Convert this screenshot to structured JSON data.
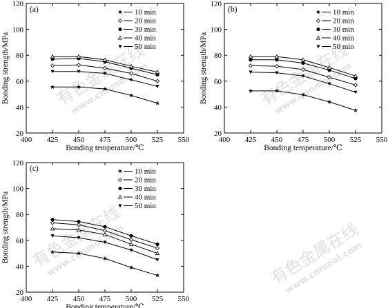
{
  "watermark": {
    "main": "有色金属在线",
    "sub": "www.cnnmol.com"
  },
  "chart_data": [
    {
      "type": "line",
      "panel_label": "(a)",
      "xlabel": "Bonding temperature/℃",
      "ylabel": "Bonding strength/MPa",
      "xlim": [
        400,
        550
      ],
      "ylim": [
        20,
        120
      ],
      "xticks": [
        400,
        425,
        450,
        475,
        500,
        525,
        550
      ],
      "yticks": [
        20,
        40,
        60,
        80,
        100,
        120
      ],
      "x": [
        425,
        450,
        475,
        500,
        525
      ],
      "legend_position": "top-right",
      "series": [
        {
          "name": "10 min",
          "marker": "star",
          "values": [
            55.5,
            55.5,
            54,
            49,
            43
          ]
        },
        {
          "name": "20 min",
          "marker": "diamond",
          "values": [
            72,
            72.5,
            70,
            66,
            60
          ]
        },
        {
          "name": "30 min",
          "marker": "circle",
          "values": [
            77,
            77.5,
            75,
            70,
            65
          ]
        },
        {
          "name": "40 min",
          "marker": "triangle-up",
          "values": [
            79,
            79,
            76.5,
            71.5,
            67
          ]
        },
        {
          "name": "50 min",
          "marker": "triangle-down",
          "values": [
            67.5,
            67.5,
            66,
            61,
            56
          ]
        }
      ]
    },
    {
      "type": "line",
      "panel_label": "(b)",
      "xlabel": "Bonding temperature/℃",
      "ylabel": "Bonding strength/MPa",
      "xlim": [
        400,
        550
      ],
      "ylim": [
        20,
        120
      ],
      "xticks": [
        400,
        425,
        450,
        475,
        500,
        525,
        550
      ],
      "yticks": [
        20,
        40,
        60,
        80,
        100,
        120
      ],
      "x": [
        425,
        450,
        475,
        500,
        525
      ],
      "legend_position": "top-right",
      "series": [
        {
          "name": "10 min",
          "marker": "star",
          "values": [
            52.5,
            52.5,
            49.5,
            44,
            37.5
          ]
        },
        {
          "name": "20 min",
          "marker": "diamond",
          "values": [
            72,
            71.5,
            69,
            63,
            57
          ]
        },
        {
          "name": "30 min",
          "marker": "circle",
          "values": [
            76.5,
            76.5,
            74,
            68.5,
            62
          ]
        },
        {
          "name": "40 min",
          "marker": "triangle-up",
          "values": [
            79,
            79,
            76.5,
            70.5,
            64
          ]
        },
        {
          "name": "50 min",
          "marker": "triangle-down",
          "values": [
            67,
            66.5,
            64,
            58,
            51.5
          ]
        }
      ]
    },
    {
      "type": "line",
      "panel_label": "(c)",
      "xlabel": "Bonding temperature/℃",
      "ylabel": "Bonding strength/MPa",
      "xlim": [
        400,
        550
      ],
      "ylim": [
        20,
        120
      ],
      "xticks": [
        400,
        425,
        450,
        475,
        500,
        525,
        550
      ],
      "yticks": [
        20,
        40,
        60,
        80,
        100,
        120
      ],
      "x": [
        425,
        450,
        475,
        500,
        525
      ],
      "legend_position": "top-right",
      "series": [
        {
          "name": "10 min",
          "marker": "star",
          "values": [
            51,
            50,
            46,
            39,
            33
          ]
        },
        {
          "name": "20 min",
          "marker": "diamond",
          "values": [
            73.5,
            72,
            67.5,
            60.5,
            54
          ]
        },
        {
          "name": "30 min",
          "marker": "circle",
          "values": [
            76,
            74.5,
            70.5,
            63.5,
            57
          ]
        },
        {
          "name": "40 min",
          "marker": "triangle-up",
          "values": [
            69,
            68,
            64.5,
            57,
            50
          ]
        },
        {
          "name": "50 min",
          "marker": "triangle-down",
          "values": [
            63.5,
            62,
            58.5,
            52.5,
            45
          ]
        }
      ]
    }
  ]
}
